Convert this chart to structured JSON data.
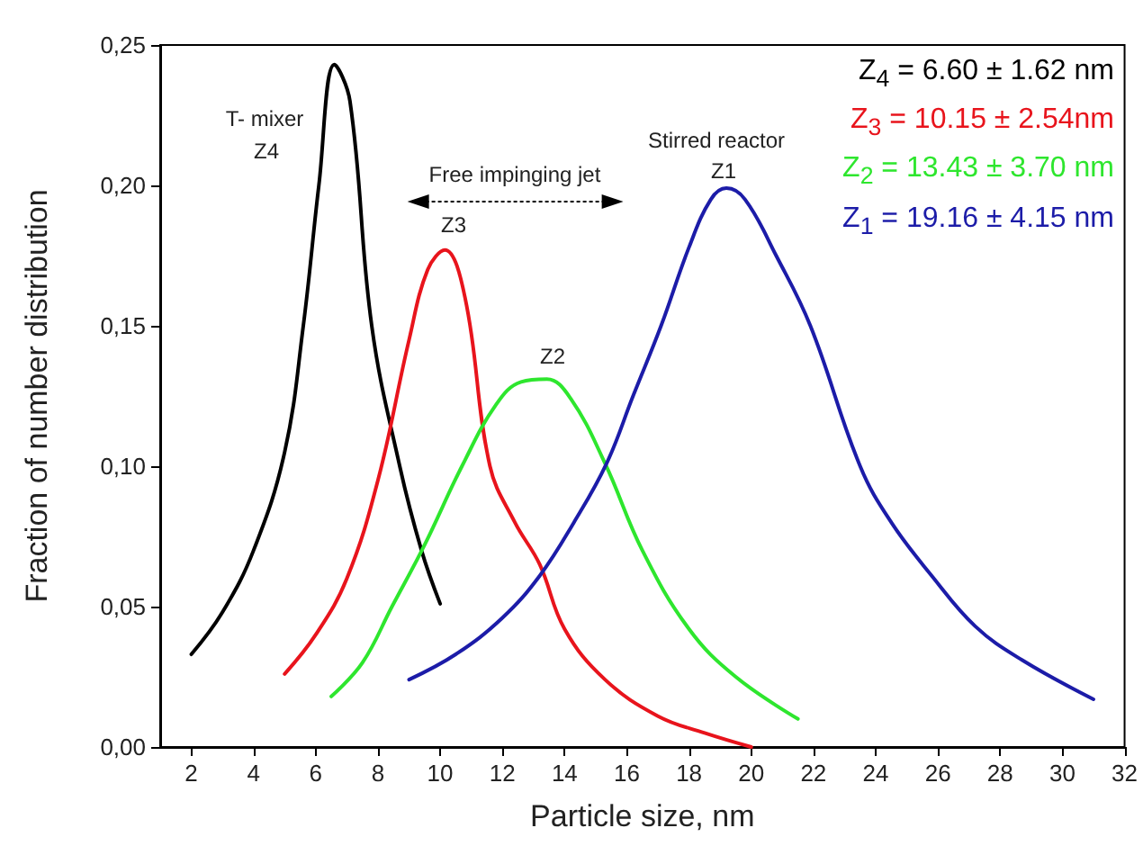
{
  "chart_data": {
    "type": "line",
    "xlabel": "Particle size, nm",
    "ylabel": "Fraction of number distribution",
    "xlim": [
      1,
      32
    ],
    "xticks": [
      2,
      4,
      6,
      8,
      10,
      12,
      14,
      16,
      18,
      20,
      22,
      24,
      26,
      28,
      30,
      32
    ],
    "ylim": [
      0,
      0.25
    ],
    "yticks": [
      {
        "value": 0,
        "label": "0,00"
      },
      {
        "value": 0.05,
        "label": "0,05"
      },
      {
        "value": 0.1,
        "label": "0,10"
      },
      {
        "value": 0.15,
        "label": "0,15"
      },
      {
        "value": 0.2,
        "label": "0,20"
      },
      {
        "value": 0.25,
        "label": "0,25"
      }
    ],
    "grid": false,
    "marker": "none",
    "line_style": "solid",
    "series": [
      {
        "name": "Z$_{4}$ = 6.60 ± 1.62 nm",
        "color": "#000000",
        "x": [
          2,
          3,
          4,
          5,
          5.6,
          6.1,
          6.6,
          7.1,
          7.8,
          8.7,
          9.4,
          10
        ],
        "values": [
          0.033,
          0.048,
          0.07,
          0.105,
          0.15,
          0.2,
          0.243,
          0.23,
          0.15,
          0.1,
          0.07,
          0.051
        ]
      },
      {
        "name": "Z$_{3}$ = 10.15 ± 2.54nm",
        "color": "#e8141c",
        "x": [
          5,
          6,
          7,
          8,
          9,
          9.6,
          10.15,
          10.8,
          11.6,
          12.4,
          13.2,
          14,
          15.3,
          17,
          18.5,
          20
        ],
        "values": [
          0.026,
          0.04,
          0.06,
          0.095,
          0.145,
          0.17,
          0.177,
          0.16,
          0.1,
          0.08,
          0.065,
          0.042,
          0.024,
          0.011,
          0.005,
          0
        ]
      },
      {
        "name": "Z$_{2}$ = 13.43 ± 3.70 nm",
        "color": "#2ee62e",
        "x": [
          6.5,
          7.5,
          8.45,
          9.5,
          10.7,
          11.8,
          12.6,
          13.43,
          14.2,
          15.3,
          16.5,
          18,
          19.5,
          21.5
        ],
        "values": [
          0.018,
          0.03,
          0.05,
          0.072,
          0.1,
          0.122,
          0.13,
          0.131,
          0.124,
          0.101,
          0.07,
          0.042,
          0.025,
          0.01
        ]
      },
      {
        "name": "Z$_{1}$ = 19.16 ± 4.15 nm",
        "color": "#1c1ca8",
        "x": [
          9,
          10.5,
          12,
          13.2,
          14.3,
          15.35,
          16.2,
          17.1,
          18,
          18.7,
          19.2,
          19.8,
          20.8,
          21.9,
          23.5,
          24.5,
          25.8,
          27.2,
          28.7,
          31
        ],
        "values": [
          0.024,
          0.033,
          0.046,
          0.061,
          0.08,
          0.101,
          0.125,
          0.15,
          0.178,
          0.195,
          0.199,
          0.195,
          0.175,
          0.15,
          0.1,
          0.08,
          0.061,
          0.043,
          0.031,
          0.017
        ]
      }
    ],
    "annotations": [
      "T- mixer",
      "Z4",
      "Free impinging jet",
      "Z3",
      "Z2",
      "Stirred reactor",
      "Z1"
    ]
  }
}
